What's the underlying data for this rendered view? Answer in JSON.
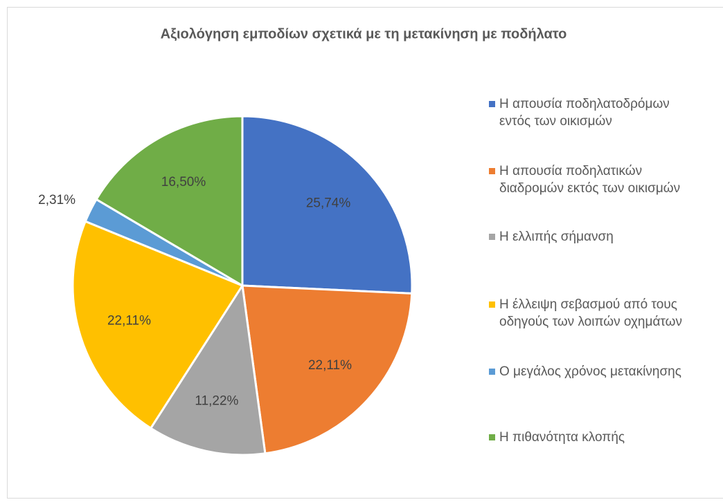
{
  "chart_data": {
    "type": "pie",
    "title": "Αξιολόγηση εμποδίων σχετικά με τη μετακίνηση με ποδήλατο",
    "categories": [
      "Η απουσία ποδηλατοδρόμων εντός των οικισμών",
      "Η απουσία ποδηλατικών διαδρομών εκτός των οικισμών",
      "Η ελλιπής σήμανση",
      "Η έλλειψη σεβασμού από τους οδηγούς των λοιπών οχημάτων",
      "Ο μεγάλος χρόνος μετακίνησης",
      "Η πιθανότητα κλοπής"
    ],
    "values": [
      25.74,
      22.11,
      11.22,
      22.11,
      2.31,
      16.5
    ],
    "value_labels": [
      "25,74%",
      "22,11%",
      "11,22%",
      "22,11%",
      "2,31%",
      "16,50%"
    ],
    "colors": [
      "#4472c4",
      "#ed7d31",
      "#a5a5a5",
      "#ffc000",
      "#5b9bd5",
      "#70ad47"
    ],
    "legend": "right"
  }
}
